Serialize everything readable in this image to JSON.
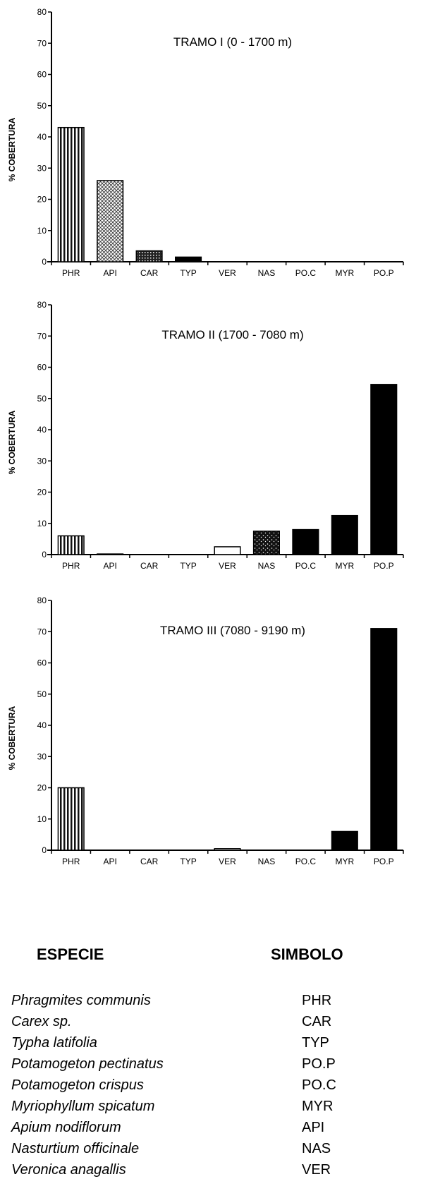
{
  "chart_data": [
    {
      "type": "bar",
      "title": "TRAMO I (0 - 1700 m)",
      "ylabel": "% COBERTURA",
      "ylim": [
        0,
        80
      ],
      "yticks": [
        0,
        10,
        20,
        30,
        40,
        50,
        60,
        70,
        80
      ],
      "categories": [
        "PHR",
        "API",
        "CAR",
        "TYP",
        "VER",
        "NAS",
        "PO.C",
        "MYR",
        "PO.P"
      ],
      "values": [
        43,
        26,
        3.5,
        1.5,
        0,
        0,
        0,
        0,
        0
      ]
    },
    {
      "type": "bar",
      "title": "TRAMO II (1700 - 7080 m)",
      "ylabel": "% COBERTURA",
      "ylim": [
        0,
        80
      ],
      "yticks": [
        0,
        10,
        20,
        30,
        40,
        50,
        60,
        70,
        80
      ],
      "categories": [
        "PHR",
        "API",
        "CAR",
        "TYP",
        "VER",
        "NAS",
        "PO.C",
        "MYR",
        "PO.P"
      ],
      "values": [
        6,
        0.2,
        0.1,
        0.1,
        2.5,
        7.5,
        8,
        12.5,
        54.5
      ]
    },
    {
      "type": "bar",
      "title": "TRAMO III (7080 - 9190 m)",
      "ylabel": "% COBERTURA",
      "ylim": [
        0,
        80
      ],
      "yticks": [
        0,
        10,
        20,
        30,
        40,
        50,
        60,
        70,
        80
      ],
      "categories": [
        "PHR",
        "API",
        "CAR",
        "TYP",
        "VER",
        "NAS",
        "PO.C",
        "MYR",
        "PO.P"
      ],
      "values": [
        20,
        0.1,
        0.1,
        0.1,
        0.5,
        0.1,
        0.1,
        6,
        71
      ]
    }
  ],
  "patterns": {
    "PHR": "vertical-stripes",
    "API": "crosshatch",
    "CAR": "grid-dark",
    "TYP": "solid-black",
    "VER": "white",
    "NAS": "speckled-dark",
    "PO.C": "solid-black",
    "MYR": "solid-black",
    "PO.P": "solid-black"
  },
  "legend": {
    "header_species": "ESPECIE",
    "header_symbol": "SIMBOLO",
    "rows": [
      {
        "name": "Phragmites communis",
        "code": "PHR"
      },
      {
        "name": "Carex sp.",
        "code": "CAR"
      },
      {
        "name": "Typha latifolia",
        "code": "TYP"
      },
      {
        "name": "Potamogeton pectinatus",
        "code": "PO.P"
      },
      {
        "name": "Potamogeton crispus",
        "code": "PO.C"
      },
      {
        "name": "Myriophyllum spicatum",
        "code": "MYR"
      },
      {
        "name": "Apium nodiflorum",
        "code": "API"
      },
      {
        "name": "Nasturtium officinale",
        "code": "NAS"
      },
      {
        "name": "Veronica anagallis",
        "code": "VER"
      }
    ]
  }
}
